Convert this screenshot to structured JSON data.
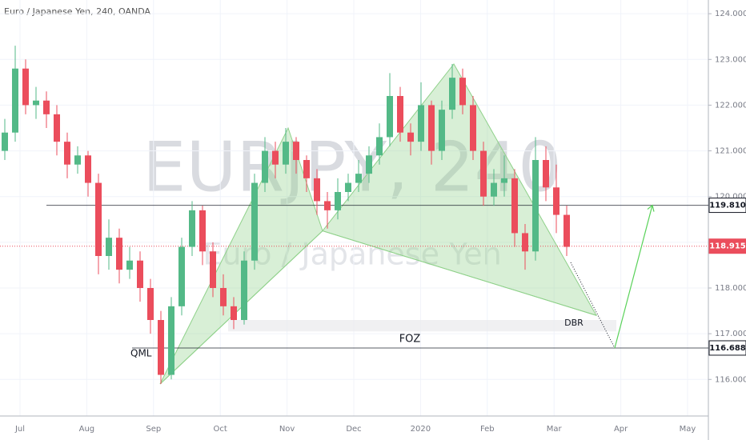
{
  "chart_data": {
    "type": "candlestick",
    "title": "Euro / Japanese Yen, 240, OANDA",
    "watermark": "EURJPY, 240",
    "watermark_subtitle": "Euro / Japanese Yen",
    "up_color": "#53b987",
    "down_color": "#eb4d5c",
    "ylim": [
      115.2,
      124.3
    ],
    "yticks": [
      {
        "value": 116,
        "label": "116.000"
      },
      {
        "value": 117,
        "label": "117.000"
      },
      {
        "value": 118,
        "label": "118.000"
      },
      {
        "value": 119,
        "label": "119.000"
      },
      {
        "value": 120,
        "label": "120.000"
      },
      {
        "value": 121,
        "label": "121.000"
      },
      {
        "value": 122,
        "label": "122.000"
      },
      {
        "value": 123,
        "label": "123.000"
      },
      {
        "value": 124,
        "label": "124.000"
      }
    ],
    "categories": [
      "Jul",
      "Aug",
      "Sep",
      "Oct",
      "Nov",
      "Dec",
      "2020",
      "Feb",
      "Mar",
      "Apr",
      "May"
    ],
    "candles": [
      [
        121.0,
        121.7,
        120.8,
        121.4
      ],
      [
        121.4,
        123.3,
        121.2,
        122.8
      ],
      [
        122.8,
        123.0,
        121.8,
        122.0
      ],
      [
        122.0,
        122.4,
        121.7,
        122.1
      ],
      [
        122.1,
        122.3,
        121.5,
        121.8
      ],
      [
        121.8,
        122.0,
        120.9,
        121.2
      ],
      [
        121.2,
        121.4,
        120.4,
        120.7
      ],
      [
        120.7,
        121.1,
        120.5,
        120.9
      ],
      [
        120.9,
        121.0,
        120.0,
        120.3
      ],
      [
        120.3,
        120.5,
        118.3,
        118.7
      ],
      [
        118.7,
        119.5,
        118.4,
        119.1
      ],
      [
        119.1,
        119.3,
        118.1,
        118.4
      ],
      [
        118.4,
        118.9,
        118.2,
        118.6
      ],
      [
        118.6,
        118.8,
        117.7,
        118.0
      ],
      [
        118.0,
        118.2,
        117.0,
        117.3
      ],
      [
        117.3,
        117.5,
        115.9,
        116.1
      ],
      [
        116.1,
        117.8,
        116.0,
        117.6
      ],
      [
        117.6,
        119.1,
        117.4,
        118.9
      ],
      [
        118.9,
        119.9,
        118.7,
        119.7
      ],
      [
        119.7,
        119.8,
        118.5,
        118.8
      ],
      [
        118.8,
        119.0,
        117.8,
        118.0
      ],
      [
        118.0,
        118.3,
        117.4,
        117.6
      ],
      [
        117.6,
        117.8,
        117.1,
        117.3
      ],
      [
        117.3,
        118.8,
        117.2,
        118.6
      ],
      [
        118.6,
        120.5,
        118.4,
        120.3
      ],
      [
        120.3,
        121.3,
        120.1,
        121.0
      ],
      [
        121.0,
        121.2,
        120.4,
        120.7
      ],
      [
        120.7,
        121.5,
        120.5,
        121.2
      ],
      [
        121.2,
        121.3,
        120.5,
        120.8
      ],
      [
        120.8,
        120.9,
        120.1,
        120.4
      ],
      [
        120.4,
        120.6,
        119.6,
        119.9
      ],
      [
        119.9,
        120.1,
        119.3,
        119.7
      ],
      [
        119.7,
        120.4,
        119.5,
        120.1
      ],
      [
        120.1,
        120.5,
        119.9,
        120.3
      ],
      [
        120.3,
        120.8,
        120.1,
        120.5
      ],
      [
        120.5,
        121.1,
        120.3,
        120.9
      ],
      [
        120.9,
        121.6,
        120.7,
        121.3
      ],
      [
        121.3,
        122.7,
        121.1,
        122.2
      ],
      [
        122.2,
        122.4,
        121.2,
        121.4
      ],
      [
        121.4,
        121.6,
        120.9,
        121.2
      ],
      [
        121.2,
        122.5,
        121.0,
        122.0
      ],
      [
        122.0,
        122.1,
        120.7,
        121.0
      ],
      [
        121.0,
        122.1,
        120.8,
        121.9
      ],
      [
        121.9,
        122.9,
        121.7,
        122.6
      ],
      [
        122.6,
        122.8,
        121.8,
        122.0
      ],
      [
        122.0,
        122.2,
        120.8,
        121.0
      ],
      [
        121.0,
        121.2,
        119.8,
        120.0
      ],
      [
        120.0,
        120.6,
        119.8,
        120.3
      ],
      [
        120.3,
        120.9,
        120.0,
        120.4
      ],
      [
        120.4,
        120.6,
        118.9,
        119.2
      ],
      [
        119.2,
        119.4,
        118.4,
        118.8
      ],
      [
        118.8,
        121.3,
        118.6,
        120.8
      ],
      [
        120.8,
        121.1,
        119.9,
        120.2
      ],
      [
        120.2,
        120.7,
        119.2,
        119.6
      ],
      [
        119.6,
        119.8,
        118.7,
        118.9
      ]
    ],
    "levels": [
      {
        "value": 119.81,
        "label": "119.810",
        "color": "#131722"
      },
      {
        "value": 118.915,
        "label": "118.915",
        "color": "#eb4d5c"
      },
      {
        "value": 116.688,
        "label": "116.688",
        "color": "#131722"
      }
    ],
    "pattern_points": [
      115.9,
      121.5,
      119.25,
      122.9,
      117.4
    ],
    "pattern_color": "#8fd18a",
    "zone": [
      117.3,
      117.05
    ],
    "annotations": [
      "QML",
      "FOZ",
      "DBR"
    ]
  }
}
